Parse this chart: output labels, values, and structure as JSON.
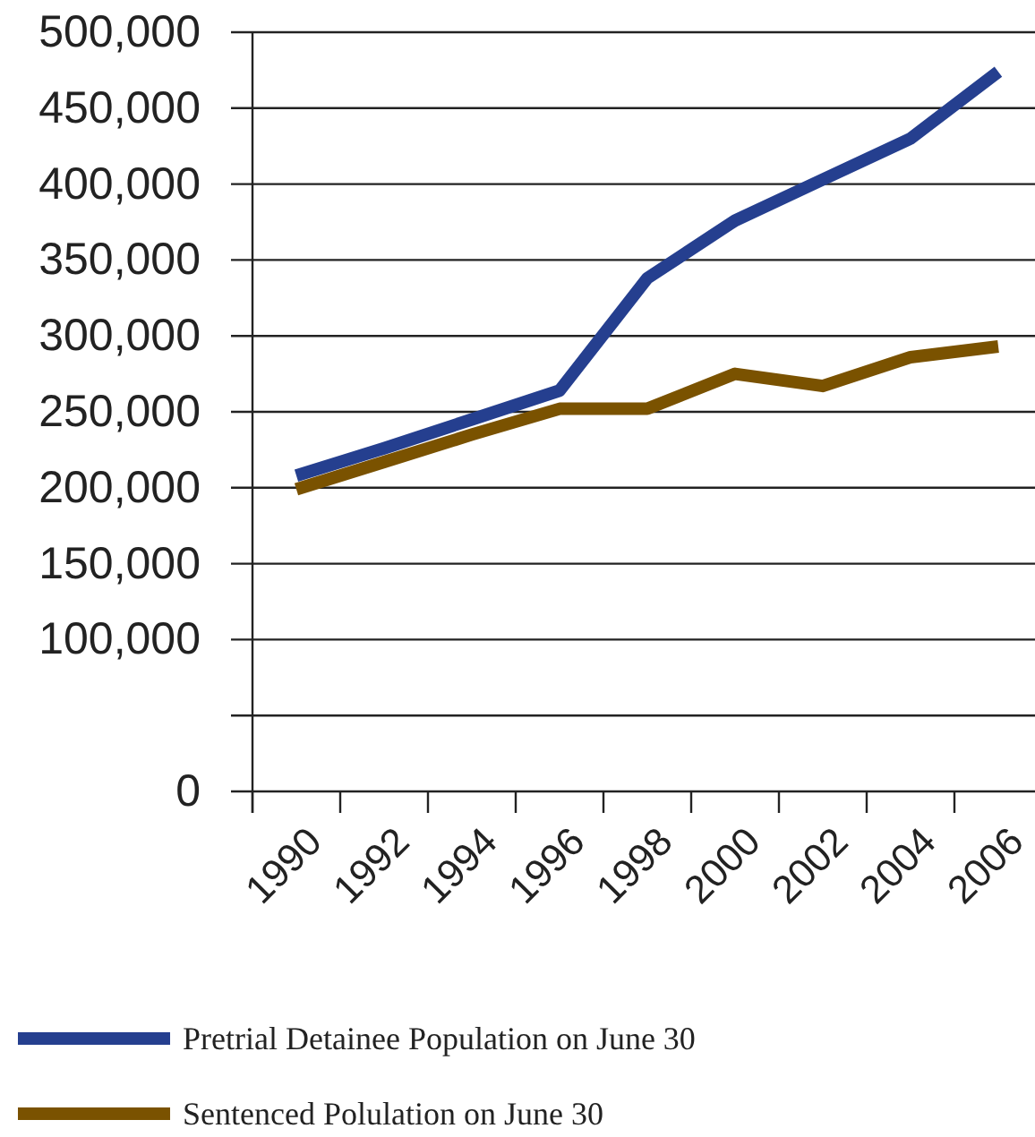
{
  "chart_data": {
    "type": "line",
    "categories": [
      "1990",
      "1992",
      "1994",
      "1996",
      "1998",
      "2000",
      "2002",
      "2004",
      "2006"
    ],
    "series": [
      {
        "name": "Pretrial Detainee Population on June 30",
        "color": "#253f8f",
        "values": [
          208000,
          226000,
          245000,
          264000,
          338000,
          376000,
          403000,
          430000,
          474000
        ]
      },
      {
        "name": "Sentenced Polulation on June 30",
        "color": "#7a5200",
        "values": [
          199000,
          217000,
          235000,
          252000,
          252000,
          275000,
          267000,
          286000,
          293000
        ]
      }
    ],
    "ylim": [
      0,
      500000
    ],
    "yticks": [
      0,
      {
        "value": 50000,
        "label": null
      },
      {
        "value": 100000,
        "label": "100,000"
      },
      {
        "value": 150000,
        "label": "150,000"
      },
      {
        "value": 200000,
        "label": "200,000"
      },
      {
        "value": 250000,
        "label": "250,000"
      },
      {
        "value": 300000,
        "label": "300,000"
      },
      {
        "value": 350000,
        "label": "350,000"
      },
      {
        "value": 400000,
        "label": "400,000"
      },
      {
        "value": 450000,
        "label": "450,000"
      },
      {
        "value": 500000,
        "label": "500,000"
      }
    ],
    "grid": "y",
    "legend": "bottom",
    "marker": "none",
    "line_style": "solid"
  }
}
